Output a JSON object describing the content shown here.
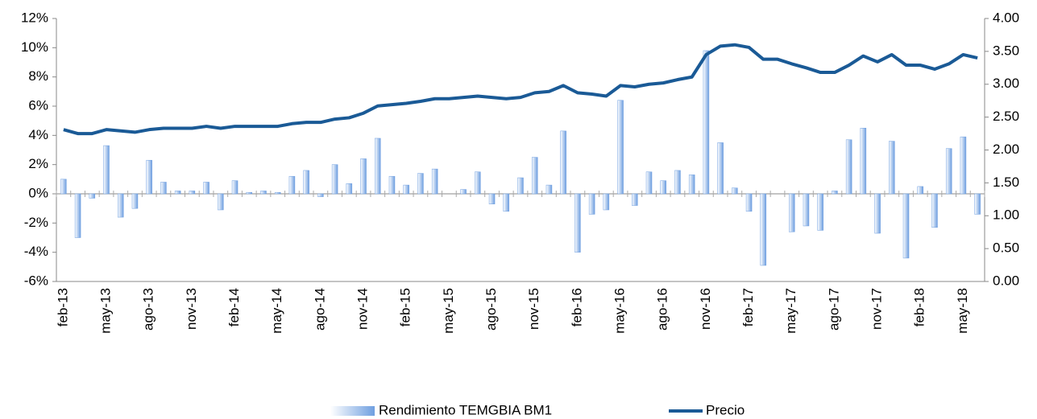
{
  "chart_data": {
    "type": "bar_line",
    "categories": [
      "feb-13",
      null,
      null,
      "may-13",
      null,
      null,
      "ago-13",
      null,
      null,
      "nov-13",
      null,
      null,
      "feb-14",
      null,
      null,
      "may-14",
      null,
      null,
      "ago-14",
      null,
      null,
      "nov-14",
      null,
      null,
      "feb-15",
      null,
      null,
      "may-15",
      null,
      null,
      "ago-15",
      null,
      null,
      "nov-15",
      null,
      null,
      "feb-16",
      null,
      null,
      "may-16",
      null,
      null,
      "ago-16",
      null,
      null,
      "nov-16",
      null,
      null,
      "feb-17",
      null,
      null,
      "may-17",
      null,
      null,
      "ago-17",
      null,
      null,
      "nov-17",
      null,
      null,
      "feb-18",
      null,
      null,
      "may-18",
      null
    ],
    "series": [
      {
        "name": "Rendimiento TEMGBIA BM1",
        "type": "bar",
        "color": "#6f9fe0",
        "values": [
          1.0,
          -3.0,
          -0.3,
          3.3,
          -1.6,
          -1.0,
          2.3,
          0.8,
          0.2,
          0.2,
          0.8,
          -1.1,
          0.9,
          0.1,
          0.2,
          0.1,
          1.2,
          1.6,
          -0.2,
          2.0,
          0.7,
          2.4,
          3.8,
          1.2,
          0.6,
          1.4,
          1.7,
          0.0,
          0.3,
          1.5,
          -0.7,
          -1.2,
          1.1,
          2.5,
          0.6,
          4.3,
          -4.0,
          -1.4,
          -1.1,
          6.4,
          -0.8,
          1.5,
          0.9,
          1.6,
          1.3,
          9.8,
          3.5,
          0.4,
          -1.2,
          -4.9,
          0.0,
          -2.6,
          -2.2,
          -2.5,
          0.2,
          3.7,
          4.5,
          -2.7,
          3.6,
          -4.4,
          0.5,
          -2.3,
          3.1,
          3.9,
          -1.4
        ]
      },
      {
        "name": "Precio",
        "type": "line",
        "axis": "y2",
        "color": "#1a5a96",
        "values": [
          2.31,
          2.25,
          2.25,
          2.31,
          2.29,
          2.27,
          2.31,
          2.33,
          2.33,
          2.33,
          2.36,
          2.33,
          2.36,
          2.36,
          2.36,
          2.36,
          2.4,
          2.42,
          2.42,
          2.47,
          2.49,
          2.56,
          2.67,
          2.69,
          2.71,
          2.74,
          2.78,
          2.78,
          2.8,
          2.82,
          2.8,
          2.78,
          2.8,
          2.87,
          2.89,
          2.98,
          2.87,
          2.85,
          2.82,
          2.98,
          2.96,
          3.0,
          3.02,
          3.07,
          3.11,
          3.45,
          3.58,
          3.6,
          3.56,
          3.38,
          3.38,
          3.31,
          3.25,
          3.18,
          3.18,
          3.29,
          3.43,
          3.34,
          3.45,
          3.29,
          3.29,
          3.23,
          3.31,
          3.45,
          3.4
        ]
      }
    ],
    "ylim": [
      -6,
      12
    ],
    "yticks": [
      {
        "value": -6,
        "label": "-6%"
      },
      {
        "value": -4,
        "label": "-4%"
      },
      {
        "value": -2,
        "label": "-2%"
      },
      {
        "value": 0,
        "label": "0%"
      },
      {
        "value": 2,
        "label": "2%"
      },
      {
        "value": 4,
        "label": "4%"
      },
      {
        "value": 6,
        "label": "6%"
      },
      {
        "value": 8,
        "label": "8%"
      },
      {
        "value": 10,
        "label": "10%"
      },
      {
        "value": 12,
        "label": "12%"
      }
    ],
    "y2lim": [
      0,
      4
    ],
    "y2ticks": [
      {
        "value": 0,
        "label": "0.00"
      },
      {
        "value": 0.5,
        "label": "0.50"
      },
      {
        "value": 1,
        "label": "1.00"
      },
      {
        "value": 1.5,
        "label": "1.50"
      },
      {
        "value": 2,
        "label": "2.00"
      },
      {
        "value": 2.5,
        "label": "2.50"
      },
      {
        "value": 3,
        "label": "3.00"
      },
      {
        "value": 3.5,
        "label": "3.50"
      },
      {
        "value": 4,
        "label": "4.00"
      }
    ],
    "legend": "bottom"
  }
}
